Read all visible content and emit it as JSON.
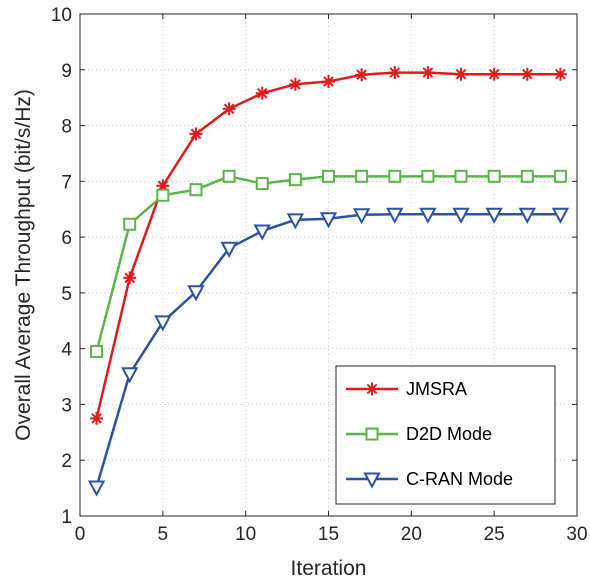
{
  "chart_data": {
    "type": "line",
    "title": "",
    "xlabel": "Iteration",
    "ylabel": "Overall Average Throughput (bit/s/Hz)",
    "xlim": [
      0,
      30
    ],
    "ylim": [
      1,
      10
    ],
    "xticks": [
      0,
      5,
      10,
      15,
      20,
      25,
      30
    ],
    "yticks": [
      1,
      2,
      3,
      4,
      5,
      6,
      7,
      8,
      9,
      10
    ],
    "grid": true,
    "legend_position": "bottom-right",
    "x": [
      1,
      3,
      5,
      7,
      9,
      11,
      13,
      15,
      17,
      19,
      21,
      23,
      25,
      27,
      29
    ],
    "series": [
      {
        "name": "JMSRA",
        "color": "#e31a1c",
        "marker": "asterisk",
        "values": [
          2.75,
          5.27,
          6.92,
          7.85,
          8.3,
          8.58,
          8.74,
          8.79,
          8.91,
          8.95,
          8.95,
          8.92,
          8.92,
          8.92,
          8.92
        ]
      },
      {
        "name": "D2D Mode",
        "color": "#5ab44a",
        "marker": "square",
        "values": [
          3.95,
          6.23,
          6.75,
          6.85,
          7.09,
          6.96,
          7.03,
          7.09,
          7.09,
          7.09,
          7.09,
          7.09,
          7.09,
          7.09,
          7.09
        ]
      },
      {
        "name": "C-RAN Mode",
        "color": "#2b52a3",
        "marker": "triangle-down",
        "values": [
          1.52,
          3.55,
          4.48,
          5.02,
          5.8,
          6.11,
          6.31,
          6.33,
          6.4,
          6.41,
          6.41,
          6.41,
          6.41,
          6.41,
          6.41
        ]
      }
    ]
  }
}
